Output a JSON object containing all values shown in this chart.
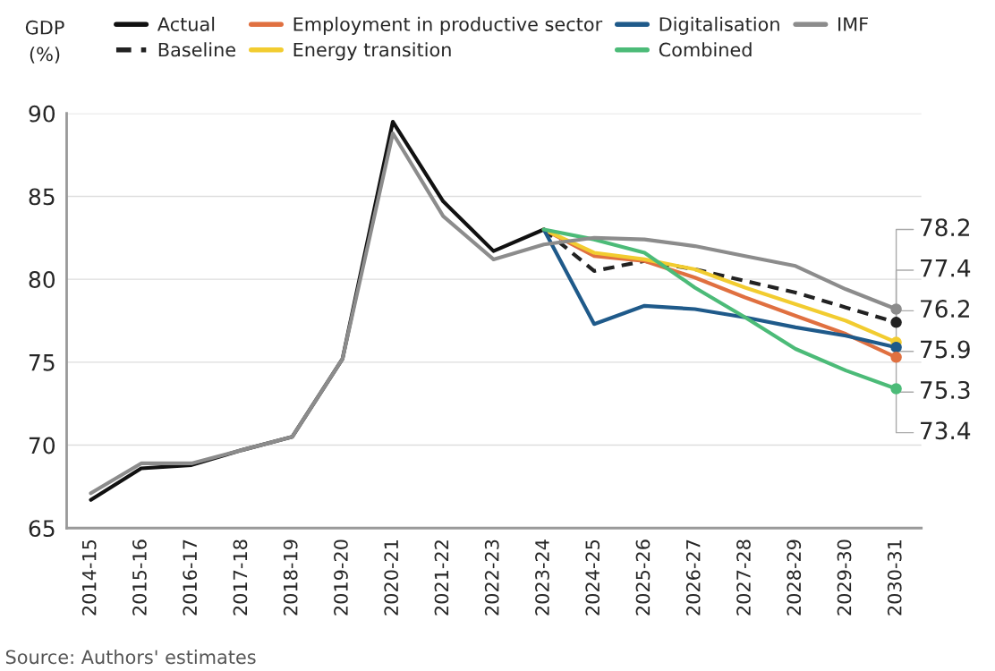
{
  "chart_data": {
    "type": "line",
    "ylabel": "GDP\n(%)",
    "categories": [
      "2014-15",
      "2015-16",
      "2016-17",
      "2017-18",
      "2018-19",
      "2019-20",
      "2020-21",
      "2021-22",
      "2022-23",
      "2023-24",
      "2024-25",
      "2025-26",
      "2026-27",
      "2027-28",
      "2028-29",
      "2029-30",
      "2030-31"
    ],
    "series": [
      {
        "name": "Actual",
        "color": "#111111",
        "values": [
          66.7,
          68.6,
          68.8,
          69.7,
          70.5,
          75.2,
          89.5,
          84.7,
          81.7,
          83.0,
          null,
          null,
          null,
          null,
          null,
          null,
          null
        ]
      },
      {
        "name": "Baseline",
        "color": "#222222",
        "line_style": "dashed",
        "values": [
          null,
          null,
          null,
          null,
          null,
          null,
          null,
          null,
          null,
          83.0,
          80.5,
          81.1,
          80.6,
          79.9,
          79.2,
          78.3,
          77.4
        ]
      },
      {
        "name": "Employment in productive sector",
        "color": "#e07040",
        "values": [
          null,
          null,
          null,
          null,
          null,
          null,
          null,
          null,
          null,
          83.0,
          81.4,
          81.1,
          80.1,
          78.9,
          77.8,
          76.7,
          75.3
        ]
      },
      {
        "name": "Energy transition",
        "color": "#f2cc30",
        "values": [
          null,
          null,
          null,
          null,
          null,
          null,
          null,
          null,
          null,
          83.0,
          81.6,
          81.2,
          80.6,
          79.5,
          78.5,
          77.5,
          76.2
        ]
      },
      {
        "name": "Digitalisation",
        "color": "#1f5a8a",
        "values": [
          null,
          null,
          null,
          null,
          null,
          null,
          null,
          null,
          null,
          83.0,
          77.3,
          78.4,
          78.2,
          77.7,
          77.1,
          76.6,
          75.9
        ]
      },
      {
        "name": "Combined",
        "color": "#4cbb78",
        "values": [
          null,
          null,
          null,
          null,
          null,
          null,
          null,
          null,
          null,
          83.0,
          82.4,
          81.6,
          79.5,
          77.7,
          75.8,
          74.5,
          73.4
        ]
      },
      {
        "name": "IMF",
        "color": "#8c8c8c",
        "values": [
          67.1,
          68.9,
          68.9,
          69.7,
          70.5,
          75.2,
          88.8,
          83.8,
          81.2,
          82.1,
          82.5,
          82.4,
          82.0,
          81.4,
          80.8,
          79.4,
          78.2
        ]
      }
    ],
    "ylim": [
      65,
      90
    ],
    "yticks": [
      65,
      70,
      75,
      80,
      85,
      90
    ],
    "grid": "y",
    "legend": "top",
    "line_style": "solid",
    "annotations": [
      {
        "text": "78.2",
        "x": "2030-31",
        "y": 78.2
      },
      {
        "text": "77.4",
        "x": "2030-31",
        "y": 77.4
      },
      {
        "text": "76.2",
        "x": "2030-31",
        "y": 76.2
      },
      {
        "text": "75.9",
        "x": "2030-31",
        "y": 75.9
      },
      {
        "text": "75.3",
        "x": "2030-31",
        "y": 75.3
      },
      {
        "text": "73.4",
        "x": "2030-31",
        "y": 73.4
      },
      "Source: Authors' estimates"
    ]
  }
}
